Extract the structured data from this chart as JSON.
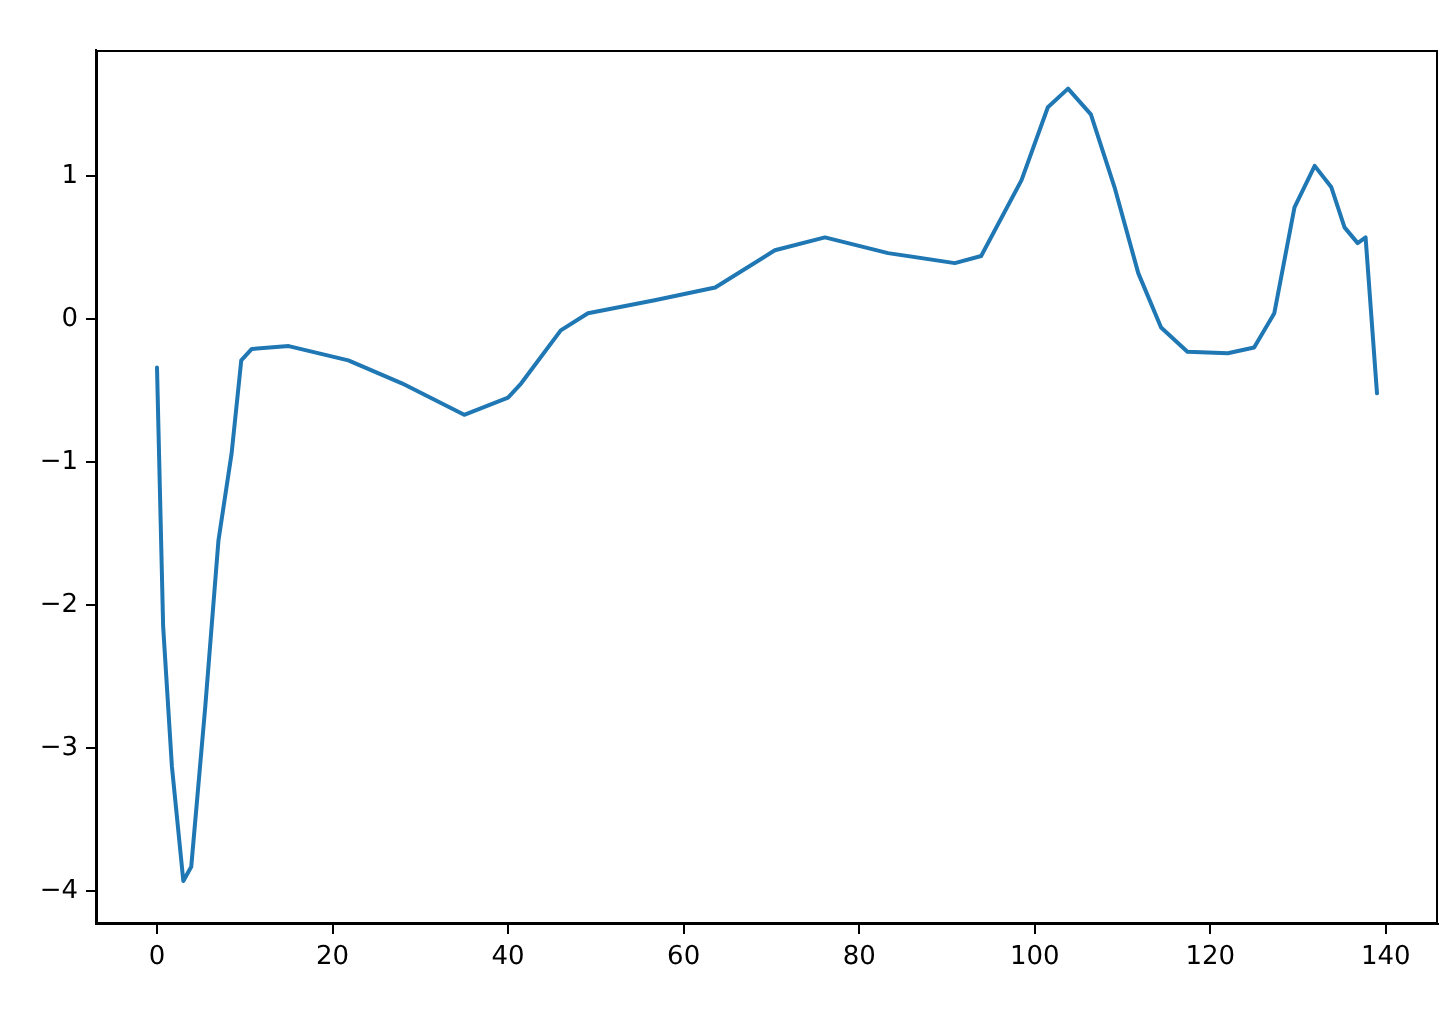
{
  "chart_data": {
    "type": "line",
    "x": [
      0,
      0.7,
      1.7,
      3,
      3.9,
      5.5,
      7,
      8.5,
      9.6,
      10.8,
      15,
      21.8,
      27.9,
      35,
      40,
      41.5,
      46,
      49.1,
      56.7,
      63.6,
      70.4,
      76.1,
      83.3,
      90.9,
      93.9,
      98.5,
      101.5,
      103.8,
      106.4,
      109.1,
      111.8,
      114.4,
      117.4,
      122,
      125,
      127.3,
      129.6,
      131.9,
      133.8,
      135.3,
      136.8,
      137.7,
      139
    ],
    "series": [
      {
        "color": "#1f77b4",
        "values": [
          -0.34,
          -2.15,
          -3.13,
          -3.93,
          -3.83,
          -2.71,
          -1.55,
          -0.94,
          -0.29,
          -0.21,
          -0.19,
          -0.29,
          -0.45,
          -0.67,
          -0.55,
          -0.45,
          -0.08,
          0.04,
          0.13,
          0.22,
          0.48,
          0.57,
          0.46,
          0.39,
          0.44,
          0.97,
          1.48,
          1.61,
          1.43,
          0.92,
          0.32,
          -0.06,
          -0.23,
          -0.24,
          -0.2,
          0.04,
          0.78,
          1.07,
          0.92,
          0.64,
          0.53,
          0.57,
          -0.52
        ]
      }
    ],
    "xlim": [
      -6.95,
      145.95
    ],
    "xticks": [
      0,
      20,
      40,
      60,
      80,
      100,
      120,
      140
    ],
    "ylim": [
      -4.23,
      1.88
    ],
    "yticks": [
      -4,
      -3,
      -2,
      -1,
      0,
      1
    ],
    "grid": false,
    "legend": false,
    "marker": "none",
    "line_style": "solid"
  }
}
